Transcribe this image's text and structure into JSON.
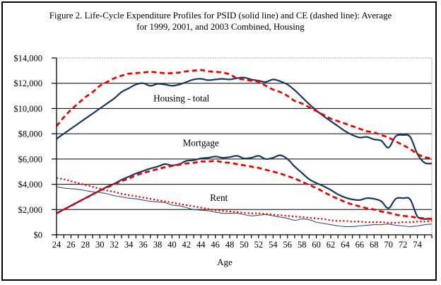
{
  "figure": {
    "title_line1": "Figure 2. Life-Cycle Expenditure Profiles for PSID (solid line) and CE (dashed line): Average",
    "title_line2": "for 1999, 2001, and 2003 Combined, Housing"
  },
  "chart_data": {
    "type": "line",
    "title": "Figure 2. Life-Cycle Expenditure Profiles for PSID (solid line) and CE (dashed line): Average for 1999, 2001, and 2003 Combined, Housing",
    "xlabel": "Age",
    "ylabel": "",
    "x": [
      24,
      25,
      26,
      27,
      28,
      29,
      30,
      31,
      32,
      33,
      34,
      35,
      36,
      37,
      38,
      39,
      40,
      41,
      42,
      43,
      44,
      45,
      46,
      47,
      48,
      49,
      50,
      51,
      52,
      53,
      54,
      55,
      56,
      57,
      58,
      59,
      60,
      61,
      62,
      63,
      64,
      65,
      66,
      67,
      68,
      69,
      70,
      71,
      72,
      73,
      74,
      75,
      76
    ],
    "x_tick_labels": [
      "24",
      "26",
      "28",
      "30",
      "32",
      "34",
      "36",
      "38",
      "40",
      "42",
      "44",
      "46",
      "48",
      "50",
      "52",
      "54",
      "56",
      "58",
      "60",
      "62",
      "64",
      "66",
      "68",
      "70",
      "72",
      "74"
    ],
    "y_ticks": [
      0,
      2000,
      4000,
      6000,
      8000,
      10000,
      12000,
      14000
    ],
    "y_tick_labels": [
      "$0",
      "$2,000",
      "$4,000",
      "$6,000",
      "$8,000",
      "$10,000",
      "$12,000",
      "$14,000"
    ],
    "xlim": [
      24,
      76
    ],
    "ylim": [
      0,
      14000
    ],
    "grid": true,
    "legend_position": "none (series identified by on-chart annotations; PSID = solid line, CE = dashed line)",
    "colors": {
      "psid": "#17375E",
      "psid_thin": "#3A527B",
      "ce": "#EE0000",
      "gridline": "#000000",
      "plot_border_dotted": "#909090"
    },
    "series": [
      {
        "id": "psid-housing-total",
        "name": "PSID Housing - total",
        "line": "solid",
        "width": 2.2,
        "color_key": "psid",
        "values": [
          7600,
          8000,
          8400,
          8800,
          9200,
          9600,
          10000,
          10400,
          10800,
          11300,
          11600,
          11900,
          12000,
          11800,
          11950,
          11900,
          11800,
          11900,
          12100,
          12300,
          12350,
          12250,
          12300,
          12350,
          12300,
          12400,
          12450,
          12300,
          12200,
          12100,
          12300,
          12150,
          11900,
          11450,
          10900,
          10350,
          9850,
          9400,
          9000,
          8600,
          8200,
          7900,
          7700,
          7750,
          7550,
          7450,
          6900,
          7800,
          7900,
          7750,
          6400,
          5700,
          5650
        ]
      },
      {
        "id": "ce-housing-total",
        "name": "CE Housing - total",
        "line": "dashed",
        "width": 2.7,
        "color_key": "ce",
        "values": [
          8600,
          9300,
          9900,
          10400,
          10900,
          11300,
          11800,
          12100,
          12400,
          12600,
          12750,
          12800,
          12850,
          12900,
          12850,
          12800,
          12800,
          12850,
          12950,
          13000,
          13050,
          12950,
          12900,
          12850,
          12700,
          12400,
          12300,
          12200,
          12100,
          11800,
          11500,
          11300,
          11000,
          10600,
          10400,
          10100,
          9800,
          9500,
          9200,
          9000,
          8800,
          8600,
          8400,
          8200,
          8100,
          7900,
          7700,
          7400,
          7100,
          6800,
          6400,
          6150,
          6050
        ]
      },
      {
        "id": "psid-mortgage",
        "name": "PSID Mortgage",
        "line": "solid",
        "width": 2.2,
        "color_key": "psid",
        "values": [
          1700,
          2000,
          2300,
          2600,
          2900,
          3200,
          3500,
          3800,
          4050,
          4350,
          4600,
          4850,
          5050,
          5250,
          5400,
          5600,
          5500,
          5600,
          5850,
          5900,
          6050,
          6100,
          6200,
          6100,
          6150,
          6250,
          6050,
          6100,
          6250,
          6000,
          6100,
          6300,
          6000,
          5400,
          4900,
          4400,
          4100,
          3850,
          3550,
          3200,
          2950,
          2800,
          2750,
          2900,
          2850,
          2650,
          2100,
          2850,
          2900,
          2800,
          1450,
          1250,
          1300
        ]
      },
      {
        "id": "ce-mortgage",
        "name": "CE Mortgage",
        "line": "dashed",
        "width": 2.7,
        "color_key": "ce",
        "values": [
          1700,
          2000,
          2300,
          2600,
          2900,
          3200,
          3500,
          3750,
          4000,
          4250,
          4450,
          4700,
          4900,
          5050,
          5200,
          5350,
          5450,
          5550,
          5650,
          5700,
          5800,
          5800,
          5850,
          5750,
          5700,
          5600,
          5500,
          5400,
          5300,
          5150,
          5000,
          4850,
          4650,
          4450,
          4200,
          3950,
          3700,
          3400,
          3100,
          2850,
          2600,
          2400,
          2250,
          2100,
          2000,
          1850,
          1750,
          1600,
          1500,
          1450,
          1350,
          1300,
          1250
        ]
      },
      {
        "id": "psid-rent",
        "name": "PSID Rent",
        "line": "solid",
        "width": 1.1,
        "color_key": "psid_thin",
        "values": [
          3800,
          3700,
          3650,
          3600,
          3500,
          3400,
          3350,
          3250,
          3100,
          3000,
          2900,
          2850,
          2750,
          2650,
          2600,
          2550,
          2350,
          2300,
          2150,
          2000,
          1950,
          1900,
          1800,
          1700,
          1700,
          1700,
          1600,
          1500,
          1550,
          1600,
          1500,
          1400,
          1300,
          1150,
          1250,
          1200,
          1000,
          900,
          800,
          700,
          650,
          650,
          700,
          750,
          800,
          800,
          850,
          750,
          700,
          650,
          700,
          800,
          850
        ]
      },
      {
        "id": "ce-rent",
        "name": "CE Rent",
        "line": "dotted",
        "width": 2.2,
        "color_key": "ce",
        "values": [
          4500,
          4400,
          4250,
          4100,
          3950,
          3800,
          3650,
          3500,
          3400,
          3250,
          3150,
          3050,
          2950,
          2850,
          2750,
          2650,
          2550,
          2450,
          2350,
          2250,
          2150,
          2050,
          1950,
          1900,
          1850,
          1800,
          1750,
          1700,
          1700,
          1650,
          1600,
          1550,
          1500,
          1450,
          1400,
          1350,
          1300,
          1250,
          1150,
          1100,
          1100,
          1050,
          1050,
          1000,
          1000,
          1000,
          950,
          950,
          1000,
          1000,
          1050,
          1050,
          1100
        ]
      }
    ],
    "annotations": [
      {
        "id": "annotation-housing-total",
        "label": "Housing - total",
        "age": 41.3,
        "value": 10800
      },
      {
        "id": "annotation-mortgage",
        "label": "Mortgage",
        "age": 44.0,
        "value": 7280
      },
      {
        "id": "annotation-rent",
        "label": "Rent",
        "age": 46.5,
        "value": 2950
      }
    ]
  }
}
